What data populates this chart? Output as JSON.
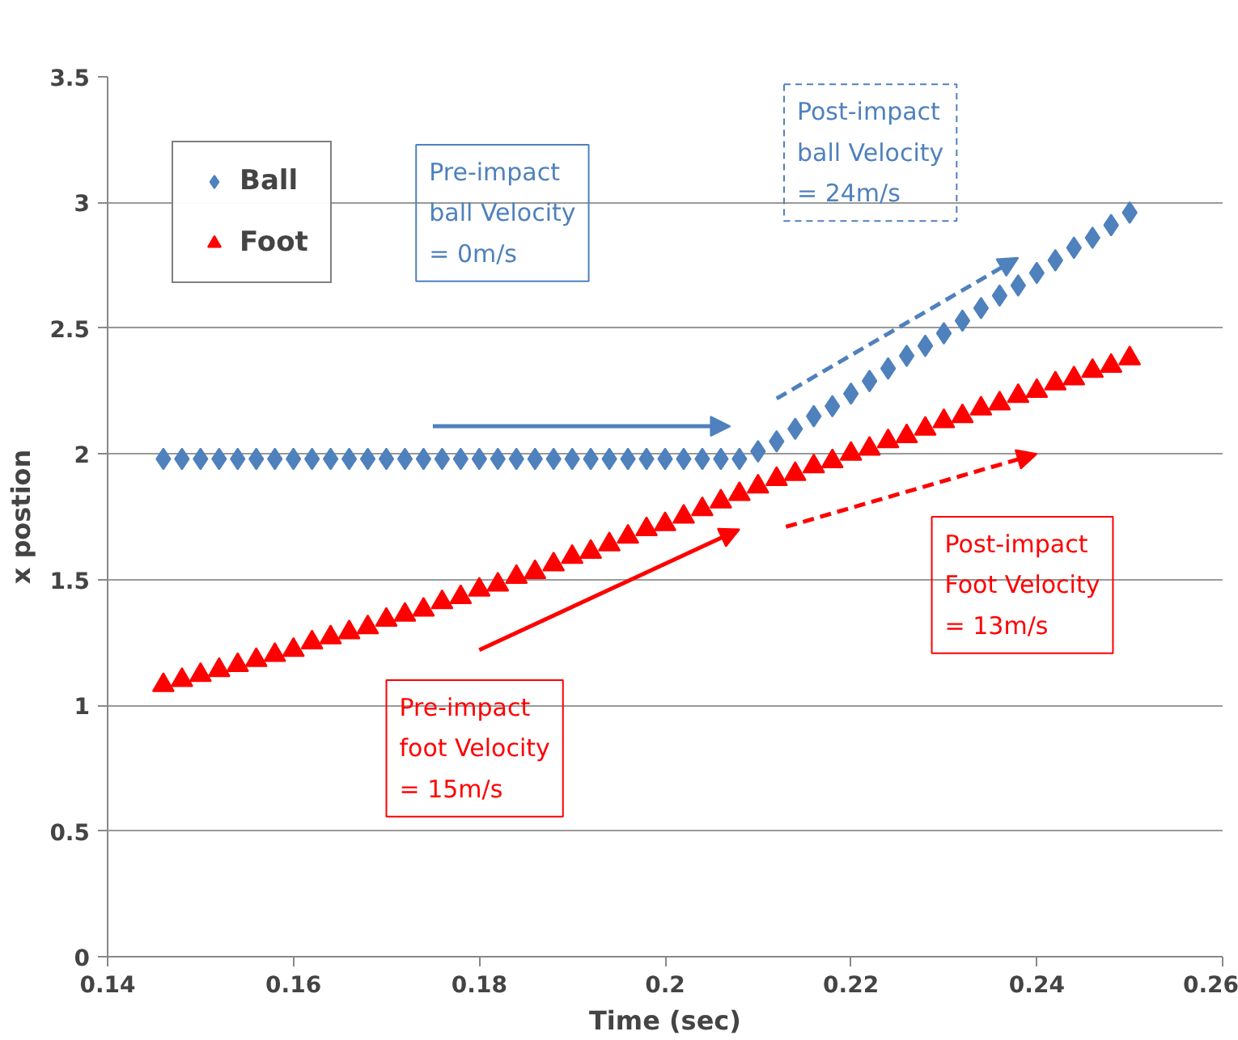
{
  "chart_data": {
    "type": "scatter",
    "xlabel": "Time (sec)",
    "ylabel": "x postion",
    "x": [
      0.146,
      0.148,
      0.15,
      0.152,
      0.154,
      0.156,
      0.158,
      0.16,
      0.162,
      0.164,
      0.166,
      0.168,
      0.17,
      0.172,
      0.174,
      0.176,
      0.178,
      0.18,
      0.182,
      0.184,
      0.186,
      0.188,
      0.19,
      0.192,
      0.194,
      0.196,
      0.198,
      0.2,
      0.202,
      0.204,
      0.206,
      0.208,
      0.21,
      0.212,
      0.214,
      0.216,
      0.218,
      0.22,
      0.222,
      0.224,
      0.226,
      0.228,
      0.23,
      0.232,
      0.234,
      0.236,
      0.238,
      0.24,
      0.242,
      0.244,
      0.246,
      0.248,
      0.25
    ],
    "series": [
      {
        "name": "Ball",
        "color": "#4f81bd",
        "marker": "diamond",
        "values": [
          1.98,
          1.98,
          1.98,
          1.98,
          1.98,
          1.98,
          1.98,
          1.98,
          1.98,
          1.98,
          1.98,
          1.98,
          1.98,
          1.98,
          1.98,
          1.98,
          1.98,
          1.98,
          1.98,
          1.98,
          1.98,
          1.98,
          1.98,
          1.98,
          1.98,
          1.98,
          1.98,
          1.98,
          1.98,
          1.98,
          1.98,
          1.98,
          2.01,
          2.05,
          2.1,
          2.15,
          2.19,
          2.24,
          2.29,
          2.34,
          2.39,
          2.43,
          2.48,
          2.53,
          2.58,
          2.63,
          2.67,
          2.72,
          2.77,
          2.82,
          2.86,
          2.91,
          2.96
        ]
      },
      {
        "name": "Foot",
        "color": "#ff0000",
        "marker": "triangle",
        "values": [
          1.08,
          1.1,
          1.12,
          1.14,
          1.16,
          1.18,
          1.2,
          1.22,
          1.25,
          1.27,
          1.29,
          1.31,
          1.34,
          1.36,
          1.38,
          1.41,
          1.43,
          1.46,
          1.48,
          1.51,
          1.53,
          1.56,
          1.59,
          1.61,
          1.64,
          1.67,
          1.7,
          1.72,
          1.75,
          1.78,
          1.81,
          1.84,
          1.87,
          1.9,
          1.92,
          1.95,
          1.97,
          2.0,
          2.02,
          2.05,
          2.07,
          2.1,
          2.13,
          2.15,
          2.18,
          2.2,
          2.23,
          2.25,
          2.28,
          2.3,
          2.33,
          2.35,
          2.38
        ]
      }
    ],
    "xlim": [
      0.14,
      0.26
    ],
    "xticks": [
      0.14,
      0.16,
      0.18,
      0.2,
      0.22,
      0.24,
      0.26
    ],
    "ylim": [
      0,
      3.5
    ],
    "yticks": [
      0,
      0.5,
      1,
      1.5,
      2,
      2.5,
      3,
      3.5
    ],
    "grid": "y",
    "legend": "top left",
    "annotations": [
      "Pre-impact\nball Velocity\n= 0m/s",
      "Post-impact\nball Velocity\n= 24m/s",
      "Pre-impact\nfoot Velocity\n= 15m/s",
      "Post-impact\nFoot Velocity\n= 13m/s"
    ]
  }
}
